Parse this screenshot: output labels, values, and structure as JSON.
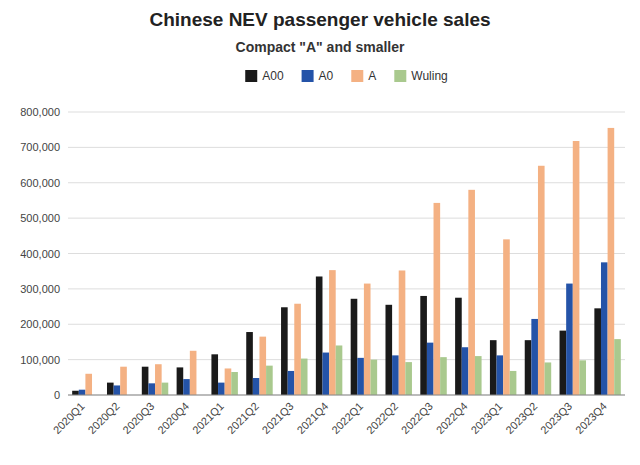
{
  "chart_data": {
    "type": "bar",
    "title": "Chinese NEV passenger vehicle sales",
    "subtitle": "Compact \"A\" and smaller",
    "categories": [
      "2020Q1",
      "2020Q2",
      "2020Q3",
      "2020Q4",
      "2021Q1",
      "2021Q2",
      "2021Q3",
      "2021Q4",
      "2022Q1",
      "2022Q2",
      "2022Q3",
      "2022Q4",
      "2023Q1",
      "2023Q2",
      "2023Q3",
      "2023Q4"
    ],
    "series": [
      {
        "name": "A00",
        "color": "#1a1a1a",
        "values": [
          12000,
          35000,
          80000,
          78000,
          115000,
          178000,
          248000,
          335000,
          272000,
          255000,
          280000,
          275000,
          155000,
          155000,
          182000,
          245000
        ]
      },
      {
        "name": "A0",
        "color": "#2453a8",
        "values": [
          15000,
          27000,
          33000,
          45000,
          35000,
          48000,
          68000,
          120000,
          105000,
          112000,
          148000,
          135000,
          112000,
          215000,
          315000,
          375000
        ]
      },
      {
        "name": "A",
        "color": "#f4b183",
        "values": [
          60000,
          80000,
          87000,
          125000,
          75000,
          165000,
          258000,
          353000,
          315000,
          352000,
          543000,
          580000,
          440000,
          648000,
          718000,
          755000
        ]
      },
      {
        "name": "Wuling",
        "color": "#a9c98e",
        "values": [
          0,
          0,
          35000,
          0,
          65000,
          83000,
          103000,
          140000,
          100000,
          93000,
          107000,
          110000,
          68000,
          92000,
          98000,
          158000
        ]
      }
    ],
    "ylim": [
      0,
      800000
    ],
    "yticks": [
      0,
      {
        "value": 100000,
        "label": "100,000"
      },
      {
        "value": 200000,
        "label": "200,000"
      },
      {
        "value": 300000,
        "label": "300,000"
      },
      {
        "value": 400000,
        "label": "400,000"
      },
      {
        "value": 500000,
        "label": "500,000"
      },
      {
        "value": 600000,
        "label": "600,000"
      },
      {
        "value": 700000,
        "label": "700,000"
      },
      {
        "value": 800000,
        "label": "800,000"
      }
    ],
    "grid": true,
    "legend": "top"
  }
}
